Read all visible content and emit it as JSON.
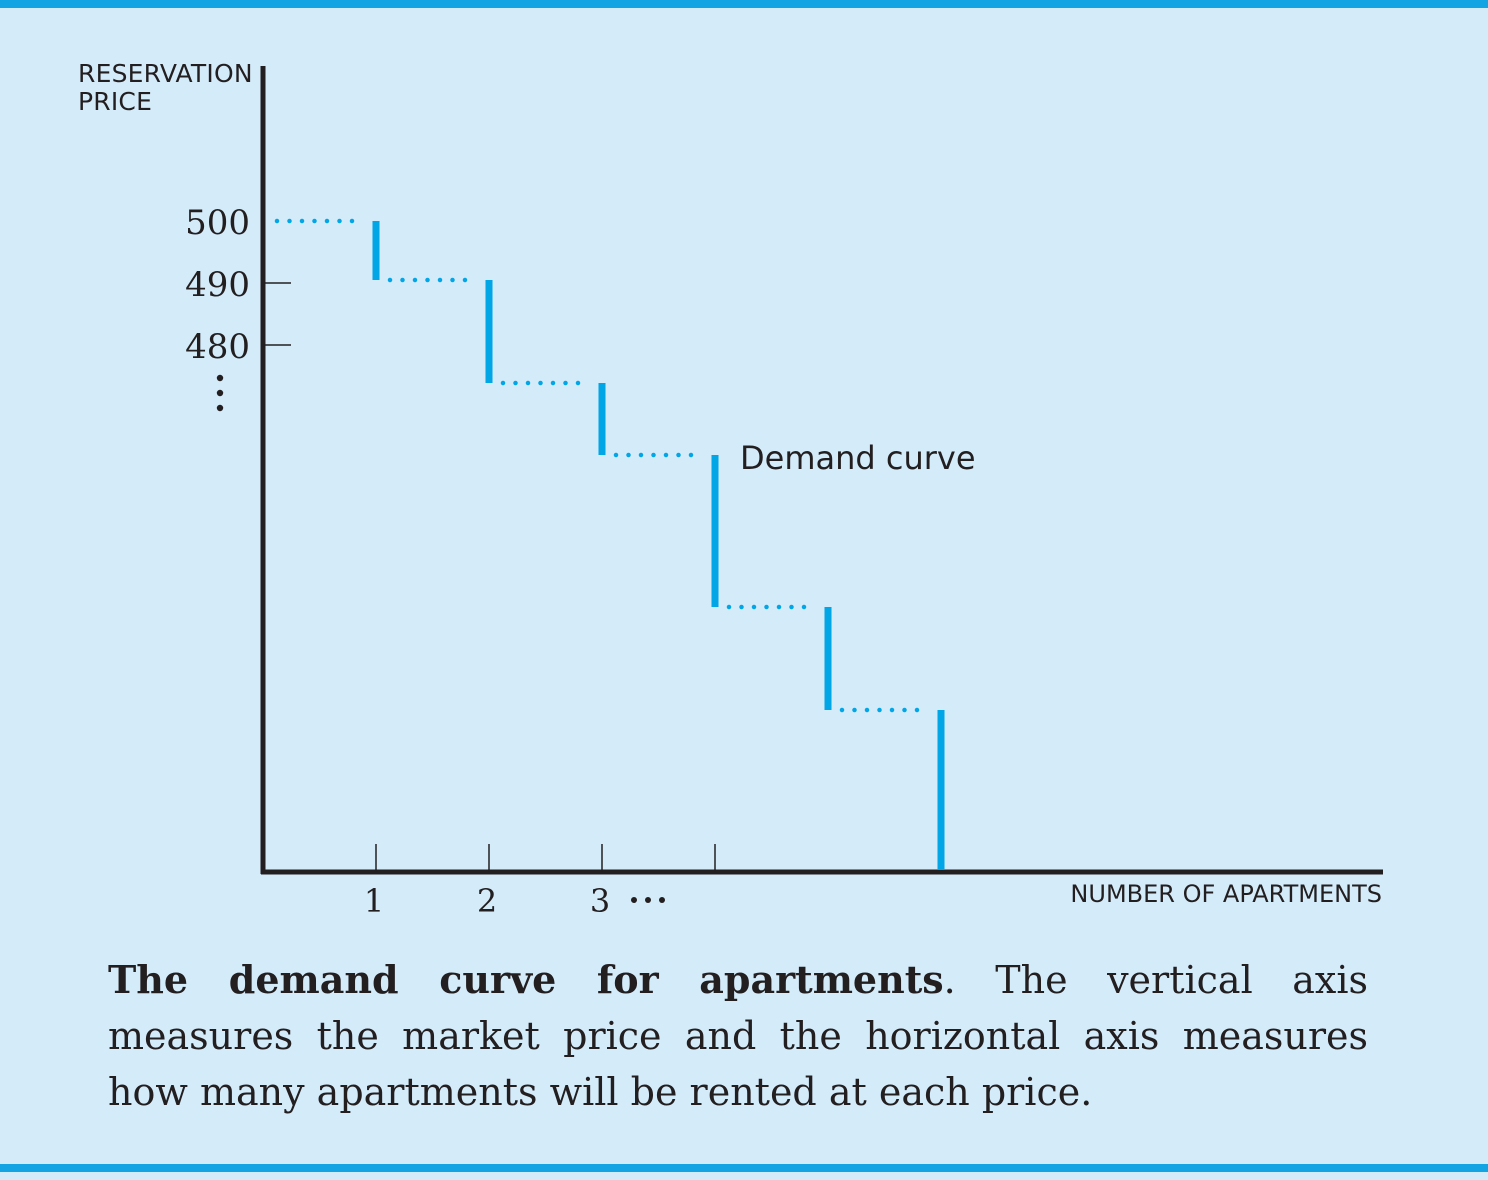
{
  "chart_data": {
    "type": "line",
    "ylabel": [
      "RESERVATION",
      "PRICE"
    ],
    "xlabel": "NUMBER OF APARTMENTS",
    "y_ticks": [
      "500",
      "490",
      "480"
    ],
    "y_ticks_continuation": "⋮",
    "x_ticks": [
      "1",
      "2",
      "3"
    ],
    "x_ticks_continuation": "···",
    "series": [
      {
        "name": "Demand curve",
        "step": true,
        "x": [
          0,
          1,
          2,
          3,
          4,
          5,
          6
        ],
        "y": [
          500,
          490,
          473,
          461,
          436,
          419,
          392
        ],
        "drops_to_zero_at_x": 5
      }
    ],
    "ylim": [
      360,
      500
    ],
    "xlim": [
      0,
      9
    ],
    "grid": false,
    "colors": {
      "curve": "#00a6e6",
      "axis": "#231f20",
      "border": "#13a5e3",
      "background": "#d4ebfa"
    }
  },
  "caption": {
    "bold": "The demand curve for apartments",
    "text": ". The vertical axis measures the market price and the horizontal axis measures how many apartments will be rented at each price."
  }
}
